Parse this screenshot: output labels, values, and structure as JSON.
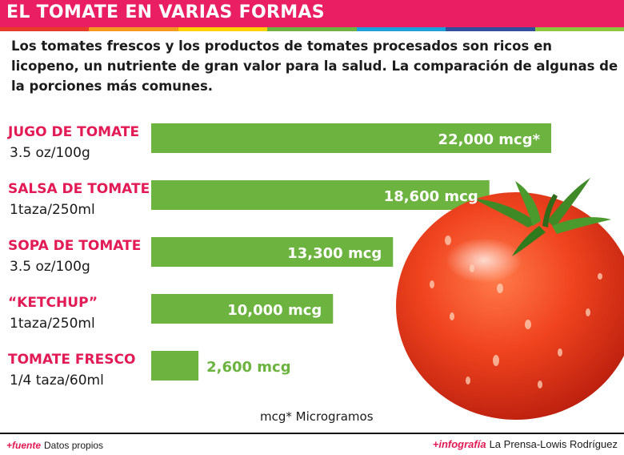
{
  "header": {
    "title": "EL TOMATE EN VARIAS FORMAS",
    "stripe_colors": [
      "#e83b2a",
      "#f39a1f",
      "#ffd200",
      "#6cb33f",
      "#1aa0db",
      "#2f4e9c",
      "#8dc63f"
    ]
  },
  "intro": {
    "text": "Los tomates frescos y los productos de tomates procesados son ricos en licopeno, un nutriente de gran valor para la salud. La comparación de algunas de la porciones más comunes."
  },
  "chart_data": {
    "type": "bar",
    "orientation": "horizontal",
    "unit": "mcg",
    "categories": [
      "JUGO DE TOMATE",
      "SALSA DE TOMATE",
      "SOPA DE TOMATE",
      "“KETCHUP”",
      "TOMATE FRESCO"
    ],
    "portions": [
      "3.5 oz/100g",
      "1taza/250ml",
      "3.5 oz/100g",
      "1taza/250ml",
      "1/4 taza/60ml"
    ],
    "values": [
      22000,
      18600,
      13300,
      10000,
      2600
    ],
    "value_labels": [
      "22,000 mcg*",
      "18,600 mcg",
      "13,300 mcg",
      "10,000 mcg",
      "2,600 mcg"
    ],
    "xlim": [
      0,
      22000
    ],
    "grid": false,
    "bar_color": "#6cb33f",
    "category_color": "#e21a55"
  },
  "note": "mcg* Microgramos",
  "footer": {
    "source_tag": "+fuente",
    "source_text": "Datos propios",
    "credit_tag": "+infografía",
    "credit_text": "La Prensa-Lowis Rodríguez"
  }
}
